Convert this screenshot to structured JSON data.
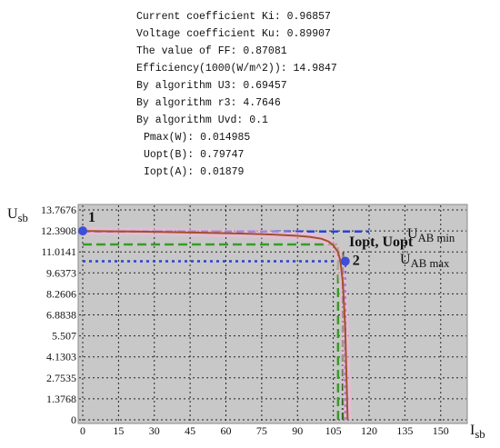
{
  "info_lines": [
    "Current coefficient Ki: 0.96857",
    "Voltage coefficient Ku: 0.89907",
    "The value of FF: 0.87081",
    "Efficiency(1000(W/m^2)): 14.9847",
    "By algorithm U3: 0.69457",
    "By algorithm r3: 4.7646",
    "By algorithm Uvd: 0.1",
    "Pmax(W): 0.014985",
    "Uopt(B): 0.79747",
    "Iopt(A): 0.01879"
  ],
  "chart_data": {
    "type": "line",
    "ylabel": {
      "main": "U",
      "sub": "sb"
    },
    "xlabel": {
      "main": "I",
      "sub": "sb"
    },
    "xlim": [
      0,
      160
    ],
    "ylim": [
      0,
      13.7676
    ],
    "xticks": [
      0,
      15,
      30,
      45,
      60,
      75,
      90,
      105,
      120,
      135,
      150
    ],
    "yticks": [
      0,
      1.3768,
      2.7535,
      4.1303,
      5.507,
      6.8838,
      8.2606,
      9.6373,
      11.0141,
      12.3908,
      13.7676
    ],
    "grid": true,
    "series": [
      {
        "color": "#a0522d",
        "x": [
          0,
          10,
          20,
          30,
          40,
          50,
          60,
          70,
          80,
          90,
          95,
          100,
          103,
          105,
          107,
          108,
          109,
          110,
          110.5,
          111
        ],
        "values": [
          12.39,
          12.37,
          12.35,
          12.33,
          12.3,
          12.27,
          12.24,
          12.2,
          12.15,
          12.07,
          12.0,
          11.88,
          11.7,
          11.45,
          11.0,
          10.4,
          9.0,
          6.0,
          3.0,
          0
        ]
      }
    ],
    "reference_lines": [
      {
        "orientation": "h",
        "value": 12.35,
        "to": 120,
        "color": "#2b3fd6",
        "dash": "8 5"
      },
      {
        "orientation": "h",
        "value": 11.5,
        "to": 107,
        "color": "#3a9a2a",
        "dash": "10 5"
      },
      {
        "orientation": "h",
        "value": 10.4,
        "to": 110,
        "color": "#2b3fd6",
        "dash": "3 4"
      },
      {
        "orientation": "v",
        "value": 107,
        "to": 11.5,
        "color": "#3a9a2a",
        "dash": "10 5"
      },
      {
        "orientation": "v",
        "value": 109,
        "to": 11.0,
        "color": "#2f5f1f",
        "dash": "8 3 2 3"
      },
      {
        "orientation": "v",
        "value": 110,
        "to": 10.4,
        "color": "#2b3fd6",
        "dash": "3 4"
      }
    ],
    "points": [
      {
        "label": "1",
        "x": 0,
        "y": 12.39,
        "color": "#3b4fd8"
      },
      {
        "label": "2",
        "x": 110,
        "y": 10.4,
        "color": "#3b4fd8"
      }
    ],
    "annotations": {
      "opt": "Iopt, Uopt",
      "umin": {
        "main": "U",
        "sub": "AB min"
      },
      "umax": {
        "main": "U",
        "sub": "AB max"
      }
    }
  }
}
